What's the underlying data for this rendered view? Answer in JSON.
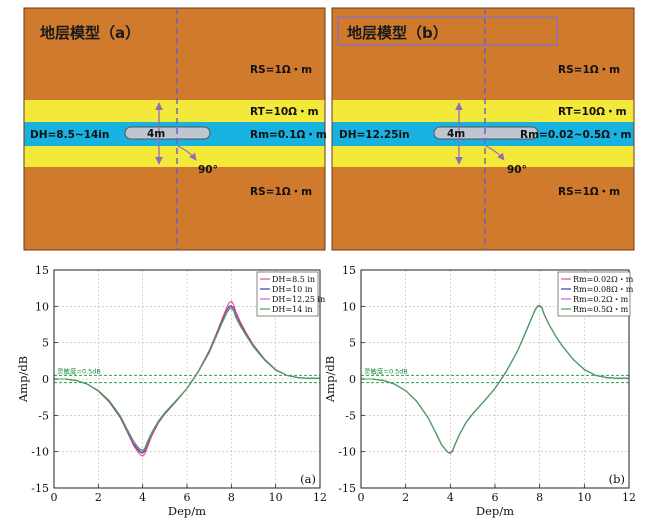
{
  "colors": {
    "formation": "#D07A2E",
    "bed": "#F4E93A",
    "mud": "#17B2E0",
    "tool": "#BFC6D2",
    "arrow": "#8C6FB5",
    "dashed": "#6B5FC8",
    "title_box": "#8E6FC0",
    "sensitivity": "#2E9E4E"
  },
  "models": [
    {
      "title": "地层模型（a）",
      "rs_top": "RS=1Ω・m",
      "rt": "RT=10Ω・m",
      "dh": "DH=8.5~14in",
      "tool_length": "4m",
      "rm": "Rm=0.1Ω・m",
      "angle": "90°",
      "rs_bottom": "RS=1Ω・m"
    },
    {
      "title": "地层模型（b）",
      "rs_top": "RS=1Ω・m",
      "rt": "RT=10Ω・m",
      "dh": "DH=12.25in",
      "tool_length": "4m",
      "rm": "Rm=0.02~0.5Ω・m",
      "angle": "90°",
      "rs_bottom": "RS=1Ω・m"
    }
  ],
  "chart_data": [
    {
      "type": "line",
      "panel_label": "(a)",
      "xlabel": "Dep/m",
      "ylabel": "Amp/dB",
      "xlim": [
        0,
        12
      ],
      "ylim": [
        -15,
        15
      ],
      "xticks": [
        0,
        2,
        4,
        6,
        8,
        10,
        12
      ],
      "yticks": [
        -15,
        -10,
        -5,
        0,
        5,
        10,
        15
      ],
      "grid": true,
      "sensitivity_label": "灵敏度=0.5dB",
      "sensitivity_lines": [
        0.5,
        -0.5
      ],
      "x": [
        0,
        0.5,
        1,
        1.5,
        2,
        2.5,
        3,
        3.3,
        3.6,
        3.8,
        3.9,
        4,
        4.1,
        4.2,
        4.4,
        4.7,
        5,
        5.5,
        6,
        6.5,
        7,
        7.3,
        7.6,
        7.8,
        7.9,
        8,
        8.1,
        8.2,
        8.4,
        8.7,
        9,
        9.5,
        10,
        10.5,
        11,
        11.5,
        12
      ],
      "series": [
        {
          "name": "DH=8.5 in",
          "color": "#E8507A",
          "values": [
            0,
            0,
            -0.2,
            -0.7,
            -1.7,
            -3.2,
            -5.4,
            -7.3,
            -9.2,
            -10.1,
            -10.45,
            -10.6,
            -10.3,
            -9.5,
            -7.9,
            -6.1,
            -4.8,
            -3.1,
            -1.3,
            1.0,
            3.9,
            6.1,
            8.4,
            9.9,
            10.5,
            10.7,
            10.3,
            9.3,
            7.9,
            6.2,
            4.7,
            2.7,
            1.3,
            0.5,
            0.2,
            0.1,
            0.1
          ]
        },
        {
          "name": "DH=10 in",
          "color": "#3B3FA8",
          "values": [
            0,
            0,
            -0.2,
            -0.7,
            -1.6,
            -3.1,
            -5.3,
            -7.1,
            -9.0,
            -9.8,
            -10.1,
            -10.2,
            -9.9,
            -9.1,
            -7.7,
            -6.0,
            -4.8,
            -3.1,
            -1.3,
            1.0,
            3.8,
            5.9,
            8.1,
            9.5,
            10.0,
            10.1,
            9.8,
            8.9,
            7.6,
            6.0,
            4.6,
            2.7,
            1.3,
            0.5,
            0.2,
            0.1,
            0.1
          ]
        },
        {
          "name": "DH=12.25 in",
          "color": "#D85AD8",
          "values": [
            0,
            0,
            -0.2,
            -0.7,
            -1.6,
            -3.0,
            -5.2,
            -7.0,
            -8.8,
            -9.6,
            -9.9,
            -10.0,
            -9.7,
            -8.9,
            -7.6,
            -5.9,
            -4.7,
            -3.0,
            -1.3,
            1.0,
            3.7,
            5.8,
            7.9,
            9.3,
            9.8,
            9.9,
            9.6,
            8.7,
            7.4,
            5.9,
            4.5,
            2.6,
            1.3,
            0.5,
            0.2,
            0.1,
            0.1
          ]
        },
        {
          "name": "DH=14 in",
          "color": "#3AAA4A",
          "values": [
            0,
            0,
            -0.2,
            -0.7,
            -1.6,
            -3.0,
            -5.1,
            -6.9,
            -8.6,
            -9.4,
            -9.7,
            -9.8,
            -9.5,
            -8.7,
            -7.4,
            -5.8,
            -4.6,
            -3.0,
            -1.3,
            0.9,
            3.6,
            5.7,
            7.8,
            9.1,
            9.6,
            9.7,
            9.4,
            8.5,
            7.3,
            5.8,
            4.4,
            2.6,
            1.2,
            0.5,
            0.2,
            0.1,
            0.1
          ]
        }
      ]
    },
    {
      "type": "line",
      "panel_label": "(b)",
      "xlabel": "Dep/m",
      "ylabel": "Amp/dB",
      "xlim": [
        0,
        12
      ],
      "ylim": [
        -15,
        15
      ],
      "xticks": [
        0,
        2,
        4,
        6,
        8,
        10,
        12
      ],
      "yticks": [
        -15,
        -10,
        -5,
        0,
        5,
        10,
        15
      ],
      "grid": true,
      "sensitivity_label": "灵敏度=0.5dB",
      "sensitivity_lines": [
        0.5,
        -0.5
      ],
      "x": [
        0,
        0.5,
        1,
        1.5,
        2,
        2.5,
        3,
        3.3,
        3.6,
        3.8,
        3.9,
        4,
        4.1,
        4.2,
        4.4,
        4.7,
        5,
        5.5,
        6,
        6.5,
        7,
        7.3,
        7.6,
        7.8,
        7.9,
        8,
        8.1,
        8.2,
        8.4,
        8.7,
        9,
        9.5,
        10,
        10.5,
        11,
        11.5,
        12
      ],
      "series": [
        {
          "name": "Rm=0.02Ω・m",
          "color": "#E8507A",
          "values": [
            0,
            0,
            -0.2,
            -0.7,
            -1.6,
            -3.1,
            -5.3,
            -7.1,
            -9.0,
            -9.8,
            -10.1,
            -10.25,
            -9.95,
            -9.1,
            -7.7,
            -6.0,
            -4.8,
            -3.1,
            -1.3,
            1.0,
            3.8,
            5.9,
            8.1,
            9.6,
            10.05,
            10.15,
            9.85,
            8.95,
            7.6,
            6.0,
            4.6,
            2.7,
            1.3,
            0.5,
            0.2,
            0.1,
            0.1
          ]
        },
        {
          "name": "Rm=0.08Ω・m",
          "color": "#3B3FA8",
          "values": [
            0,
            0,
            -0.2,
            -0.7,
            -1.6,
            -3.1,
            -5.3,
            -7.1,
            -9.0,
            -9.8,
            -10.1,
            -10.2,
            -9.9,
            -9.1,
            -7.7,
            -6.0,
            -4.8,
            -3.1,
            -1.3,
            1.0,
            3.8,
            5.9,
            8.1,
            9.55,
            10.0,
            10.1,
            9.8,
            8.9,
            7.6,
            6.0,
            4.6,
            2.7,
            1.3,
            0.5,
            0.2,
            0.1,
            0.1
          ]
        },
        {
          "name": "Rm=0.2Ω・m",
          "color": "#D85AD8",
          "values": [
            0,
            0,
            -0.2,
            -0.7,
            -1.6,
            -3.1,
            -5.3,
            -7.1,
            -9.0,
            -9.8,
            -10.1,
            -10.2,
            -9.9,
            -9.1,
            -7.7,
            -6.0,
            -4.8,
            -3.1,
            -1.3,
            1.0,
            3.8,
            5.9,
            8.1,
            9.5,
            10.0,
            10.1,
            9.8,
            8.9,
            7.6,
            6.0,
            4.6,
            2.7,
            1.3,
            0.5,
            0.2,
            0.1,
            0.1
          ]
        },
        {
          "name": "Rm=0.5Ω・m",
          "color": "#3AAA4A",
          "values": [
            0,
            0,
            -0.2,
            -0.7,
            -1.6,
            -3.1,
            -5.3,
            -7.1,
            -9.0,
            -9.8,
            -10.1,
            -10.15,
            -9.85,
            -9.05,
            -7.7,
            -6.0,
            -4.8,
            -3.1,
            -1.3,
            1.0,
            3.8,
            5.9,
            8.1,
            9.5,
            9.95,
            10.05,
            9.75,
            8.85,
            7.6,
            6.0,
            4.6,
            2.7,
            1.3,
            0.5,
            0.2,
            0.1,
            0.1
          ]
        }
      ]
    }
  ]
}
